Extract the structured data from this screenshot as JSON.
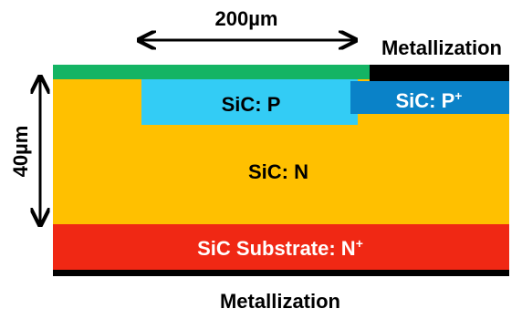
{
  "labels": {
    "width_dimension": "200µm",
    "top_metal": "Metallization",
    "thickness_dimension": "40µm",
    "p_region": "SiC: P",
    "p_plus_region": "SiC: P",
    "p_plus_sup": "+",
    "n_region": "SiC: N",
    "substrate": "SiC Substrate: N",
    "substrate_sup": "+",
    "bottom_metal": "Metallization"
  },
  "colors": {
    "n_layer": "#ffc000",
    "p_region": "#33ccf5",
    "p_plus_region": "#0a82c8",
    "passivation": "#14b464",
    "metal": "#000000",
    "substrate": "#f02814"
  }
}
